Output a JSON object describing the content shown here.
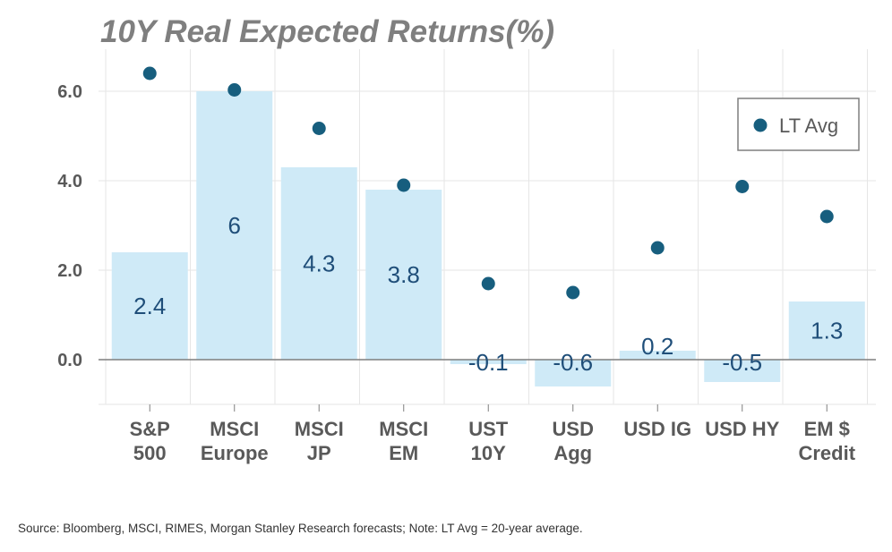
{
  "chart_data": {
    "type": "bar",
    "title": "10Y Real Expected Returns(%)",
    "categories": [
      [
        "S&P",
        "500"
      ],
      [
        "MSCI",
        "Europe"
      ],
      [
        "MSCI",
        "JP"
      ],
      [
        "MSCI",
        "EM"
      ],
      [
        "UST",
        "10Y"
      ],
      [
        "USD",
        "Agg"
      ],
      [
        "USD IG"
      ],
      [
        "USD HY"
      ],
      [
        "EM $",
        "Credit"
      ]
    ],
    "series": [
      {
        "name": "10Y Real Expected Return",
        "kind": "bar",
        "values": [
          2.4,
          6,
          4.3,
          3.8,
          -0.1,
          -0.6,
          0.2,
          -0.5,
          1.3
        ],
        "labels": [
          "2.4",
          "6",
          "4.3",
          "3.8",
          "-0.1",
          "-0.6",
          "0.2",
          "-0.5",
          "1.3"
        ]
      },
      {
        "name": "LT Avg",
        "kind": "dot",
        "values": [
          6.4,
          6.03,
          5.17,
          3.9,
          1.7,
          1.5,
          2.5,
          3.87,
          3.2
        ]
      }
    ],
    "yticks": [
      "0.0",
      "2.0",
      "4.0",
      "6.0"
    ],
    "ytick_values": [
      0,
      2,
      4,
      6
    ],
    "ylim": [
      -1,
      7
    ],
    "legend": {
      "label": "LT Avg",
      "position": "top-right"
    },
    "colors": {
      "bar": "#cfeaf7",
      "dot": "#175e7e",
      "axis": "#7f7f7f",
      "grid": "#e6e6e6",
      "label": "#1f4e79"
    }
  },
  "footnote": "Source: Bloomberg, MSCI, RIMES, Morgan Stanley Research forecasts; Note: LT Avg = 20-year average."
}
